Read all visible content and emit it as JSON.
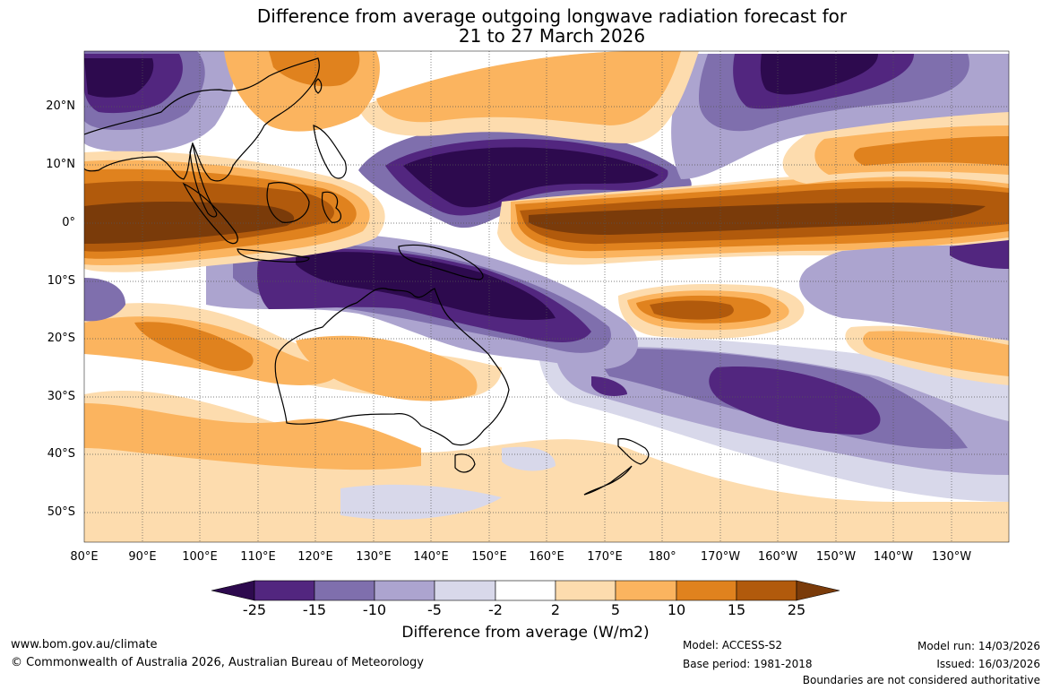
{
  "title": {
    "line1": "Difference from average outgoing longwave radiation forecast for",
    "line2": "21 to 27 March 2026"
  },
  "map": {
    "lat_labels": [
      "20°N",
      "10°N",
      "0°",
      "10°S",
      "20°S",
      "30°S",
      "40°S",
      "50°S"
    ],
    "lon_labels": [
      "80°E",
      "90°E",
      "100°E",
      "110°E",
      "120°E",
      "130°E",
      "140°E",
      "150°E",
      "160°E",
      "170°E",
      "180°",
      "170°W",
      "160°W",
      "150°W",
      "140°W",
      "130°W"
    ],
    "lat_range": [
      -55,
      30
    ],
    "lon_range": [
      80,
      243
    ]
  },
  "colorbar": {
    "levels": [
      "-25",
      "-15",
      "-10",
      "-5",
      "-2",
      "2",
      "5",
      "10",
      "15",
      "25"
    ],
    "colors": [
      "#2d0a4e",
      "#52267f",
      "#7f6fad",
      "#aca4cf",
      "#d8d8ea",
      "#ffffff",
      "#fddcae",
      "#fbb45f",
      "#e0821e",
      "#b15a0c",
      "#7a3b0a"
    ],
    "title": "Difference from average (W/m2)"
  },
  "footer": {
    "website": "www.bom.gov.au/climate",
    "copyright": "© Commonwealth of Australia 2026, Australian Bureau of Meteorology",
    "model": "Model: ACCESS-S2",
    "base_period": "Base period: 1981-2018",
    "model_run": "Model run: 14/03/2026",
    "issued": "Issued: 16/03/2026",
    "disclaimer": "Boundaries are not considered authoritative"
  }
}
